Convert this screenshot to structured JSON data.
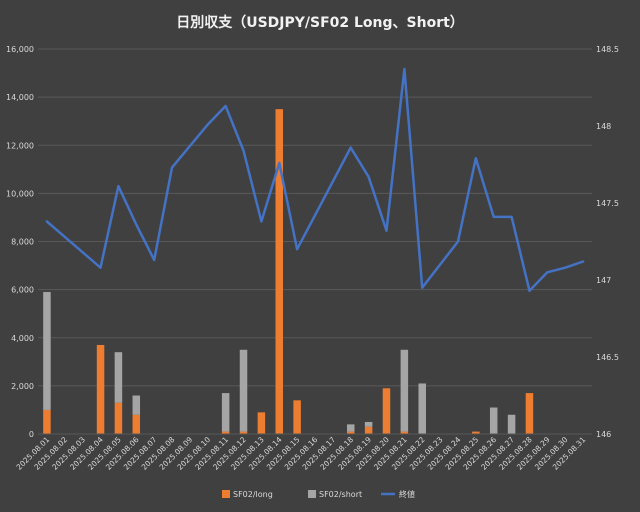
{
  "chart_data": {
    "type": "bar",
    "title": "日別収支（USDJPY/SF02 Long、Short）",
    "stacked": true,
    "combo_line": true,
    "categories": [
      "2025.08.01",
      "2025.08.02",
      "2025.08.03",
      "2025.08.04",
      "2025.08.05",
      "2025.08.06",
      "2025.08.07",
      "2025.08.08",
      "2025.08.09",
      "2025.08.10",
      "2025.08.11",
      "2025.08.12",
      "2025.08.13",
      "2025.08.14",
      "2025.08.15",
      "2025.08.16",
      "2025.08.17",
      "2025.08.18",
      "2025.08.19",
      "2025.08.20",
      "2025.08.21",
      "2025.08.22",
      "2025.08.23",
      "2025.08.24",
      "2025.08.25",
      "2025.08.26",
      "2025.08.27",
      "2025.08.28",
      "2025.08.29",
      "2025.08.30",
      "2025.08.31"
    ],
    "series": [
      {
        "name": "SF02/long",
        "type": "bar",
        "axis": "left",
        "color": "#ED7D31",
        "values": [
          1000,
          0,
          0,
          3700,
          1300,
          800,
          0,
          0,
          0,
          0,
          100,
          100,
          900,
          13500,
          1400,
          0,
          0,
          100,
          300,
          1900,
          100,
          0,
          0,
          0,
          100,
          0,
          0,
          1700,
          0,
          0,
          0
        ]
      },
      {
        "name": "SF02/short",
        "type": "bar",
        "axis": "left",
        "color": "#A5A5A5",
        "values": [
          4900,
          0,
          0,
          0,
          2100,
          800,
          0,
          0,
          0,
          0,
          1600,
          3400,
          0,
          0,
          0,
          0,
          0,
          300,
          200,
          0,
          3400,
          2100,
          0,
          0,
          0,
          1100,
          800,
          0,
          0,
          0,
          0
        ]
      },
      {
        "name": "終値",
        "type": "line",
        "axis": "right",
        "color": "#4472C4",
        "values": [
          147.38,
          147.28,
          147.18,
          147.08,
          147.61,
          147.36,
          147.13,
          147.73,
          147.87,
          148.01,
          148.13,
          147.84,
          147.38,
          147.76,
          147.2,
          147.42,
          147.64,
          147.86,
          147.67,
          147.32,
          148.37,
          146.95,
          147.1,
          147.25,
          147.79,
          147.41,
          147.41,
          146.93,
          147.05,
          147.08,
          147.12
        ]
      }
    ],
    "yleft": {
      "min": 0,
      "max": 16000,
      "ticks": [
        "0",
        "2,000",
        "4,000",
        "6,000",
        "8,000",
        "10,000",
        "12,000",
        "14,000",
        "16,000"
      ]
    },
    "yright": {
      "min": 146,
      "max": 148.5,
      "ticks": [
        "146",
        "146.5",
        "147",
        "147.5",
        "148",
        "148.5"
      ]
    },
    "grid": true,
    "legend": "bottom",
    "colors": {
      "background": "#404040",
      "grid": "#595959",
      "text": "#D9D9D9",
      "title": "#F2F2F2"
    }
  }
}
